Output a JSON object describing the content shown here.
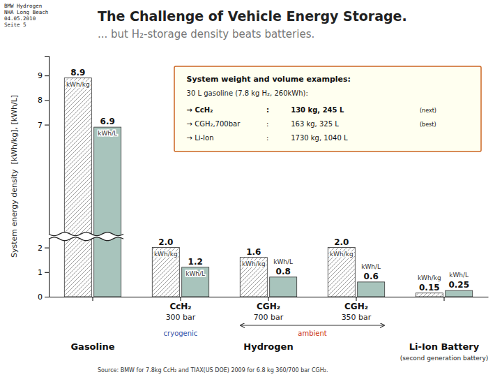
{
  "chart_data": {
    "type": "bar",
    "title": "The Challenge of Vehicle Energy Storage.",
    "subtitle": "... but H₂-storage density beats batteries.",
    "watermark": [
      "BMW Hydrogen",
      "NHA Long Beach",
      "04.05.2010",
      "Seite 5"
    ],
    "ylabel": "System energy density  [kWh/kg], [kWh/L]",
    "source": "Source: BMW for 7.8kg CcH₂ and TIAX(US DOE) 2009 for 6.8 kg 360/700 bar CGH₂.",
    "categories": [
      null,
      "CcH₂",
      "CGH₂",
      "CGH₂",
      null
    ],
    "category_sublabels": [
      null,
      "300 bar",
      "700 bar",
      "350 bar",
      null
    ],
    "storage_labels": [
      null,
      "cryogenic",
      "ambient",
      "ambient",
      null
    ],
    "group_labels": [
      "Gasoline",
      "Hydrogen",
      "Hydrogen",
      "Hydrogen",
      "Li-Ion Battery"
    ],
    "group_notes": [
      null,
      null,
      null,
      null,
      "(second generation battery)"
    ],
    "series": [
      {
        "unit": "kWh/kg",
        "color": "white",
        "values": [
          8.9,
          2.0,
          1.6,
          2.0,
          0.15
        ],
        "value_labels": [
          "8.9",
          "2.0",
          "1.6",
          "2.0",
          "0.15"
        ]
      },
      {
        "unit": "kWh/L",
        "color": "#a8c4bc",
        "values": [
          6.9,
          1.2,
          0.8,
          0.6,
          0.25
        ],
        "value_labels": [
          "6.9",
          "1.2",
          "0.8",
          "0.6",
          "0.25"
        ]
      }
    ],
    "ylim": [
      0,
      9.8
    ],
    "yticks": [
      0,
      1,
      2,
      7,
      8,
      9
    ],
    "axis_break": [
      2.35,
      2.55
    ],
    "grid": false,
    "data_labels": true,
    "info_box": {
      "title": "System weight and volume examples:",
      "subtitle": "30 L gasoline (7.8 kg H₂, 260kWh):",
      "rows": [
        [
          "→ CcH₂",
          ":",
          "130 kg, 245 L",
          "(next)"
        ],
        [
          "→ CGH₂,700bar",
          ":",
          "163 kg, 325 L",
          "(best)"
        ],
        [
          "→ Li-Ion",
          ":",
          "1730 kg, 1040 L"
        ]
      ]
    }
  }
}
